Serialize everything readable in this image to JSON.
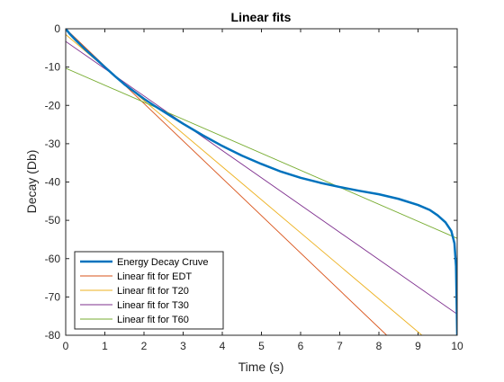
{
  "chart_data": {
    "type": "line",
    "title": "Linear fits",
    "xlabel": "Time (s)",
    "ylabel": "Decay (Db)",
    "xlim": [
      0,
      10
    ],
    "ylim": [
      -80,
      0
    ],
    "xticks": [
      0,
      1,
      2,
      3,
      4,
      5,
      6,
      7,
      8,
      9,
      10
    ],
    "yticks": [
      0,
      -10,
      -20,
      -30,
      -40,
      -50,
      -60,
      -70,
      -80
    ],
    "grid": false,
    "legend_position": "bottom-left",
    "series": [
      {
        "name": "Energy Decay Cruve",
        "color": "#0072BD",
        "style": "thick",
        "points": [
          [
            0,
            0
          ],
          [
            0.1,
            -1.3
          ],
          [
            0.25,
            -2.9
          ],
          [
            0.5,
            -5.4
          ],
          [
            0.75,
            -7.7
          ],
          [
            1,
            -10
          ],
          [
            1.25,
            -12.3
          ],
          [
            1.5,
            -14.5
          ],
          [
            1.75,
            -16.4
          ],
          [
            2,
            -18.3
          ],
          [
            2.25,
            -20
          ],
          [
            2.5,
            -21.6
          ],
          [
            3,
            -24.8
          ],
          [
            3.5,
            -27.8
          ],
          [
            4,
            -30.6
          ],
          [
            4.5,
            -33.1
          ],
          [
            5,
            -35.3
          ],
          [
            5.5,
            -37.3
          ],
          [
            6,
            -38.9
          ],
          [
            6.5,
            -40.2
          ],
          [
            7,
            -41.3
          ],
          [
            7.5,
            -42.3
          ],
          [
            8,
            -43.2
          ],
          [
            8.5,
            -44.4
          ],
          [
            9,
            -46
          ],
          [
            9.3,
            -47.3
          ],
          [
            9.5,
            -48.7
          ],
          [
            9.7,
            -50.5
          ],
          [
            9.85,
            -52.8
          ],
          [
            9.93,
            -56
          ],
          [
            9.97,
            -62
          ],
          [
            10,
            -80
          ]
        ]
      },
      {
        "name": "Linear fit for EDT",
        "color": "#D95319",
        "points": [
          [
            0,
            0
          ],
          [
            8.2,
            -80
          ]
        ]
      },
      {
        "name": "Linear fit for T20",
        "color": "#EDB120",
        "points": [
          [
            0,
            -1.5
          ],
          [
            9.1,
            -80
          ]
        ]
      },
      {
        "name": "Linear fit for T30",
        "color": "#7E2F8E",
        "points": [
          [
            0,
            -3.3
          ],
          [
            10,
            -74.5
          ]
        ]
      },
      {
        "name": "Linear fit for T60",
        "color": "#77AC30",
        "points": [
          [
            0,
            -10.3
          ],
          [
            10,
            -54.7
          ]
        ]
      }
    ]
  }
}
